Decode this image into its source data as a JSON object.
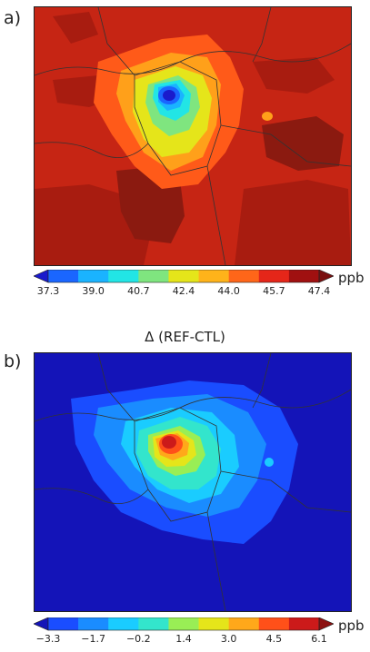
{
  "panels": [
    {
      "label": "a)",
      "unit": "ppb",
      "colorbar_ticks": [
        "37.3",
        "39.0",
        "40.7",
        "42.4",
        "44.0",
        "45.7",
        "47.4"
      ],
      "colors": [
        "#1a1acc",
        "#1a66ff",
        "#1ab3ff",
        "#22e5e5",
        "#7fe57f",
        "#e5e51a",
        "#ffb31a",
        "#ff6619",
        "#e52619",
        "#a01010",
        "#7a1010"
      ]
    },
    {
      "label": "b)",
      "title": "Δ (REF-CTL)",
      "unit": "ppb",
      "colorbar_ticks": [
        "−3.3",
        "−1.7",
        "−0.2",
        "1.4",
        "3.0",
        "4.5",
        "6.1"
      ],
      "colors": [
        "#1414b8",
        "#1a4dff",
        "#1a8cff",
        "#1accff",
        "#33e5cc",
        "#99ee55",
        "#e5e51a",
        "#ffa81a",
        "#ff5019",
        "#cc1a1a",
        "#8c1010"
      ]
    }
  ]
}
